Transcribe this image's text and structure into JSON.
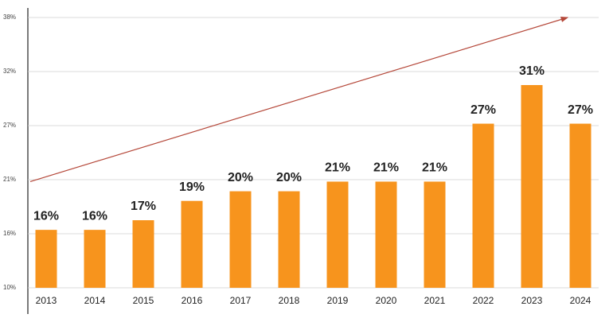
{
  "chart_data": {
    "type": "bar",
    "categories": [
      "2013",
      "2014",
      "2015",
      "2016",
      "2017",
      "2018",
      "2019",
      "2020",
      "2021",
      "2022",
      "2023",
      "2024"
    ],
    "values": [
      16,
      16,
      17,
      19,
      20,
      20,
      21,
      21,
      21,
      27,
      31,
      27
    ],
    "value_labels": [
      "16%",
      "16%",
      "17%",
      "19%",
      "20%",
      "20%",
      "21%",
      "21%",
      "21%",
      "27%",
      "31%",
      "27%"
    ],
    "color": "#f7941d",
    "ylim": [
      10,
      38
    ],
    "yticks": [
      {
        "value": 10,
        "label": "10%"
      },
      {
        "value": 15.6,
        "label": "16%"
      },
      {
        "value": 21.2,
        "label": "21%"
      },
      {
        "value": 26.8,
        "label": "27%"
      },
      {
        "value": 32.4,
        "label": "32%"
      },
      {
        "value": 38,
        "label": "38%"
      }
    ],
    "grid": true,
    "trend": {
      "values": [
        21,
        38
      ],
      "color": "#b5483a"
    }
  }
}
